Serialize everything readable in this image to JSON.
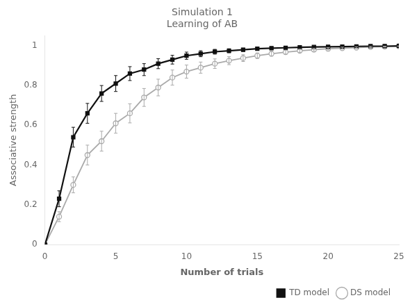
{
  "chart_data": {
    "type": "line",
    "title": "Simulation 1",
    "subtitle": "Learning of AB",
    "x_label": "Number of trials",
    "y_label": "Associative strength",
    "x": [
      0,
      1,
      2,
      3,
      4,
      5,
      6,
      7,
      8,
      9,
      10,
      11,
      12,
      13,
      14,
      15,
      16,
      17,
      18,
      19,
      20,
      21,
      22,
      23,
      24,
      25
    ],
    "series": [
      {
        "name": "TD model",
        "color": "#111111",
        "marker": "square",
        "line_style": "solid",
        "values": [
          0.0,
          0.23,
          0.54,
          0.66,
          0.76,
          0.81,
          0.86,
          0.88,
          0.91,
          0.93,
          0.95,
          0.96,
          0.97,
          0.975,
          0.98,
          0.985,
          0.988,
          0.99,
          0.992,
          0.994,
          0.995,
          0.996,
          0.997,
          0.998,
          0.998,
          0.999
        ],
        "errors": [
          0.0,
          0.04,
          0.05,
          0.05,
          0.04,
          0.04,
          0.035,
          0.03,
          0.025,
          0.022,
          0.018,
          0.015,
          0.012,
          0.01,
          0.008,
          0.007,
          0.006,
          0.005,
          0.004,
          0.003,
          0.003,
          0.002,
          0.002,
          0.001,
          0.001,
          0.001
        ]
      },
      {
        "name": "DS model",
        "color": "#aaaaaa",
        "marker": "circle",
        "line_style": "solid",
        "values": [
          0.0,
          0.14,
          0.3,
          0.45,
          0.52,
          0.61,
          0.66,
          0.74,
          0.79,
          0.84,
          0.87,
          0.89,
          0.91,
          0.925,
          0.938,
          0.95,
          0.96,
          0.968,
          0.975,
          0.98,
          0.985,
          0.988,
          0.991,
          0.994,
          0.996,
          0.998
        ],
        "errors": [
          0.0,
          0.025,
          0.04,
          0.05,
          0.05,
          0.05,
          0.048,
          0.045,
          0.042,
          0.038,
          0.033,
          0.028,
          0.024,
          0.02,
          0.017,
          0.014,
          0.012,
          0.01,
          0.008,
          0.007,
          0.006,
          0.005,
          0.004,
          0.003,
          0.002,
          0.001
        ]
      }
    ],
    "xlim": [
      0,
      25
    ],
    "ylim": [
      0,
      1.05
    ],
    "xticks": [
      0,
      5,
      10,
      15,
      20,
      25
    ],
    "yticks": [
      0,
      0.2,
      0.4,
      0.6,
      0.8,
      1
    ],
    "grid": false,
    "legend": "lower right"
  }
}
